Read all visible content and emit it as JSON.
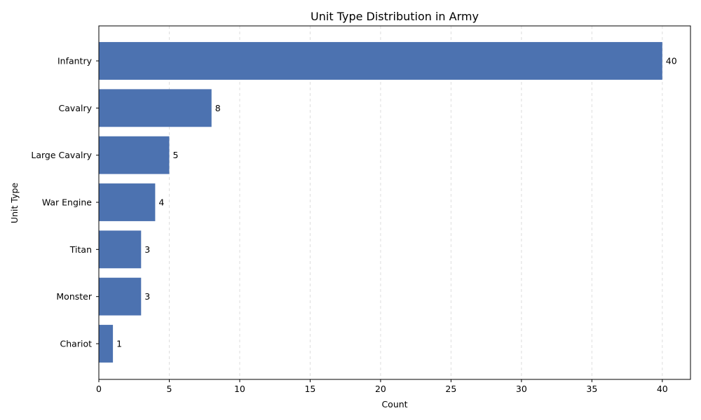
{
  "chart_data": {
    "type": "bar",
    "orientation": "horizontal",
    "title": "Unit Type Distribution in Army",
    "xlabel": "Count",
    "ylabel": "Unit Type",
    "categories": [
      "Infantry",
      "Cavalry",
      "Large Cavalry",
      "War Engine",
      "Titan",
      "Monster",
      "Chariot"
    ],
    "values": [
      40,
      8,
      5,
      4,
      3,
      3,
      1
    ],
    "xlim": [
      0,
      42
    ],
    "xticks": [
      0,
      5,
      10,
      15,
      20,
      25,
      30,
      35,
      40
    ],
    "grid": "vertical dashed",
    "bar_color": "#4c72b0",
    "grid_color": "#dddddd"
  }
}
